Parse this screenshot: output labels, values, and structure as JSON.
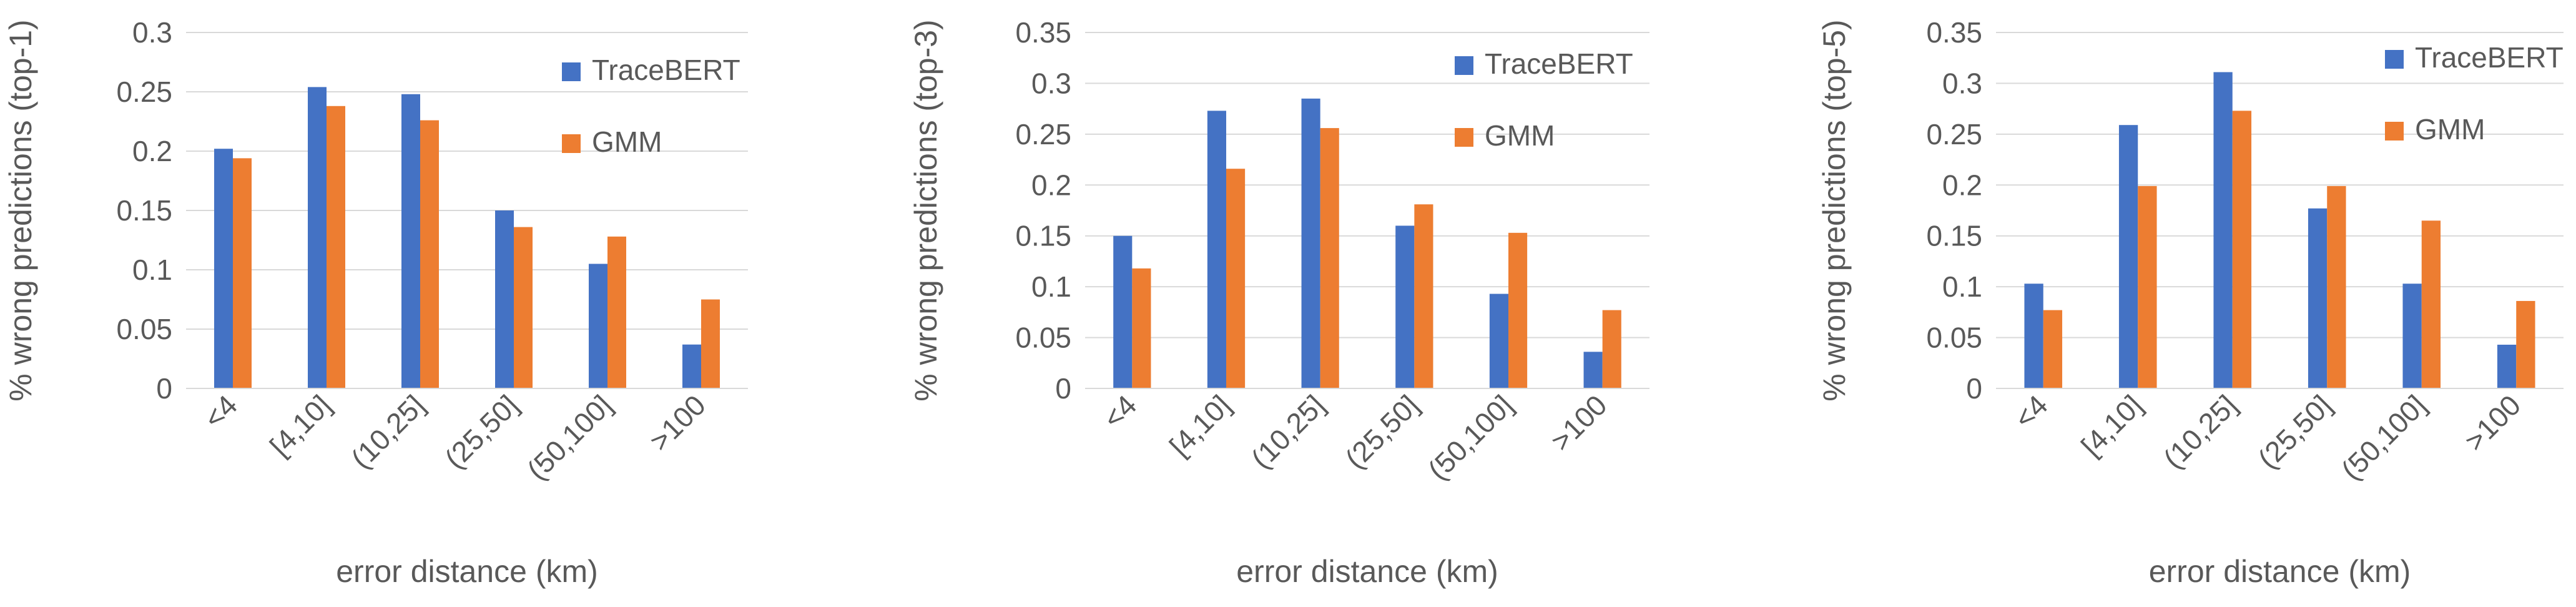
{
  "colors": {
    "tracebert": "#4472C4",
    "gmm": "#ED7D31",
    "grid": "#D9D9D9",
    "text": "#595959"
  },
  "chart_data": [
    {
      "type": "bar",
      "categories": [
        "<4",
        "[4,10]",
        "(10,25]",
        "(25,50]",
        "(50,100]",
        ">100"
      ],
      "series": [
        {
          "name": "TraceBERT",
          "values": [
            0.202,
            0.254,
            0.248,
            0.15,
            0.105,
            0.037
          ]
        },
        {
          "name": "GMM",
          "values": [
            0.194,
            0.238,
            0.226,
            0.136,
            0.128,
            0.075
          ]
        }
      ],
      "xlabel": "error distance (km)",
      "ylabel": "% wrong predictions (top-1)",
      "ylim": [
        0,
        0.3
      ],
      "yticks": [
        "0",
        "0.05",
        "0.1",
        "0.15",
        "0.2",
        "0.25",
        "0.3"
      ],
      "grid": true,
      "legend": "top-right"
    },
    {
      "type": "bar",
      "categories": [
        "<4",
        "[4,10]",
        "(10,25]",
        "(25,50]",
        "(50,100]",
        ">100"
      ],
      "series": [
        {
          "name": "TraceBERT",
          "values": [
            0.15,
            0.273,
            0.285,
            0.16,
            0.093,
            0.036
          ]
        },
        {
          "name": "GMM",
          "values": [
            0.118,
            0.216,
            0.256,
            0.181,
            0.153,
            0.077
          ]
        }
      ],
      "xlabel": "error distance (km)",
      "ylabel": "% wrong predictions (top-3)",
      "ylim": [
        0,
        0.35
      ],
      "yticks": [
        "0",
        "0.05",
        "0.1",
        "0.15",
        "0.2",
        "0.25",
        "0.3",
        "0.35"
      ],
      "grid": true,
      "legend": "top-right"
    },
    {
      "type": "bar",
      "categories": [
        "<4",
        "[4,10]",
        "(10,25]",
        "(25,50]",
        "(50,100]",
        ">100"
      ],
      "series": [
        {
          "name": "TraceBERT",
          "values": [
            0.103,
            0.259,
            0.311,
            0.177,
            0.103,
            0.043
          ]
        },
        {
          "name": "GMM",
          "values": [
            0.077,
            0.199,
            0.273,
            0.199,
            0.165,
            0.086
          ]
        }
      ],
      "xlabel": "error distance (km)",
      "ylabel": "% wrong predictions (top-5)",
      "ylim": [
        0,
        0.35
      ],
      "yticks": [
        "0",
        "0.05",
        "0.1",
        "0.15",
        "0.2",
        "0.25",
        "0.3",
        "0.35"
      ],
      "grid": true,
      "legend": "top-right"
    }
  ]
}
